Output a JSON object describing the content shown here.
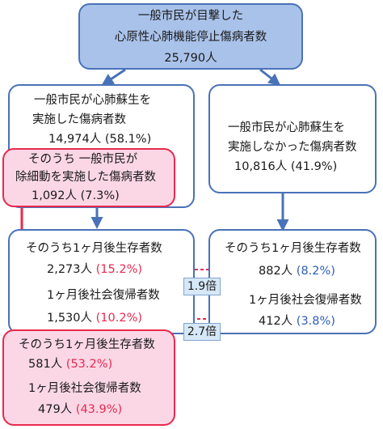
{
  "top": {
    "line1": "一般市民が目撃した",
    "line2": "心原性心肺機能停止傷病者数",
    "line3": "25,790人"
  },
  "left_mid": {
    "line1": "一般市民が心肺蘇生を",
    "line2": "実施した傷病者数",
    "count": "14,974人",
    "pct": "(58.1%)"
  },
  "right_mid": {
    "line1": "一般市民が心肺蘇生を",
    "line2": "実施しなかった傷病者数",
    "count": "10,816人",
    "pct": "(41.9%)"
  },
  "aed": {
    "line1": "そのうち 一般市民が",
    "line2": "除細動を実施した傷病者数",
    "count": "1,092人",
    "pct": "(7.3%)"
  },
  "left_outcome": {
    "survival_label": "そのうち1ヶ月後生存者数",
    "survival_count": "2,273人",
    "survival_pct": "(15.2%)",
    "return_label": "1ヶ月後社会復帰者数",
    "return_count": "1,530人",
    "return_pct": "(10.2%)"
  },
  "right_outcome": {
    "survival_label": "そのうち1ヶ月後生存者数",
    "survival_count": "882人",
    "survival_pct": "(8.2%)",
    "return_label": "1ヶ月後社会復帰者数",
    "return_count": "412人",
    "return_pct": "(3.8%)"
  },
  "aed_outcome": {
    "survival_label": "そのうち1ヶ月後生存者数",
    "survival_count": "581人",
    "survival_pct": "(53.2%)",
    "return_label": "1ヶ月後社会復帰者数",
    "return_count": "479人",
    "return_pct": "(43.9%)"
  },
  "ratios": {
    "survival": "1.9倍",
    "return": "2.7倍"
  },
  "colors": {
    "box_border": "#4a72b8",
    "top_fill": "#a9c2ea",
    "highlight_border": "#e8294e",
    "highlight_fill": "#fbd7e6",
    "red_text": "#e8294e",
    "blue_text": "#2f5fb3",
    "ratio_fill": "#d6e8f7"
  }
}
